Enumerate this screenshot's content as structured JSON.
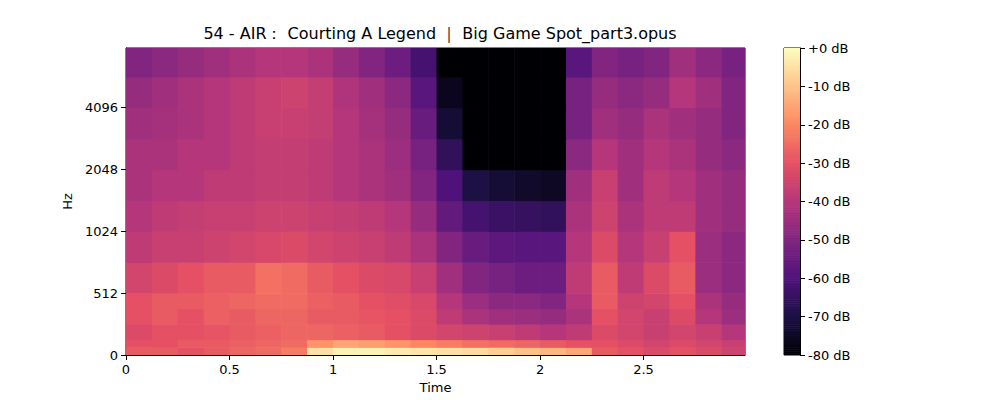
{
  "chart_data": {
    "type": "heatmap",
    "title": "54 - AIR： Courting A Legend ｜ Big Game Spot_part3.opus",
    "x_label": "Time",
    "y_label": "Hz",
    "xlim": [
      0,
      2.99
    ],
    "xticks": [
      0,
      0.5,
      1,
      1.5,
      2,
      2.5
    ],
    "ylim": [
      0,
      8000
    ],
    "yticks": [
      0,
      512,
      1024,
      2048,
      4096
    ],
    "grid": false,
    "time_bins": [
      0,
      0.125,
      0.25,
      0.375,
      0.5,
      0.625,
      0.75,
      0.875,
      1,
      1.125,
      1.25,
      1.375,
      1.5,
      1.625,
      1.75,
      1.875,
      2,
      2.125,
      2.25,
      2.375,
      2.5,
      2.625,
      2.75,
      2.875,
      3
    ],
    "freq_bins": [
      0,
      64,
      128,
      256,
      384,
      512,
      724,
      1024,
      1448,
      2048,
      2896,
      4096,
      5793,
      8000
    ],
    "cells": [
      [
        -28,
        -28,
        -30,
        -28,
        -26,
        -25,
        -22,
        -5,
        -2,
        -2,
        -3,
        -4,
        -5,
        -6,
        -8,
        -10,
        -12,
        -15,
        -28,
        -30,
        -32,
        -30,
        -32,
        -35
      ],
      [
        -30,
        -30,
        -28,
        -28,
        -27,
        -26,
        -25,
        -18,
        -15,
        -16,
        -18,
        -20,
        -22,
        -24,
        -25,
        -26,
        -28,
        -30,
        -30,
        -32,
        -34,
        -32,
        -34,
        -36
      ],
      [
        -32,
        -30,
        -30,
        -29,
        -28,
        -27,
        -26,
        -26,
        -27,
        -28,
        -30,
        -32,
        -34,
        -35,
        -36,
        -38,
        -40,
        -38,
        -32,
        -34,
        -36,
        -34,
        -36,
        -40
      ],
      [
        -30,
        -28,
        -30,
        -27,
        -28,
        -26,
        -26,
        -28,
        -28,
        -29,
        -30,
        -32,
        -38,
        -42,
        -44,
        -45,
        -46,
        -42,
        -30,
        -34,
        -36,
        -32,
        -40,
        -45
      ],
      [
        -30,
        -28,
        -28,
        -27,
        -26,
        -25,
        -25,
        -27,
        -28,
        -30,
        -31,
        -33,
        -40,
        -45,
        -48,
        -48,
        -50,
        -40,
        -28,
        -35,
        -34,
        -30,
        -42,
        -46
      ],
      [
        -34,
        -32,
        -30,
        -28,
        -28,
        -24,
        -25,
        -28,
        -30,
        -32,
        -33,
        -36,
        -44,
        -50,
        -52,
        -54,
        -54,
        -38,
        -28,
        -38,
        -32,
        -28,
        -45,
        -48
      ],
      [
        -38,
        -36,
        -36,
        -35,
        -34,
        -33,
        -32,
        -34,
        -35,
        -36,
        -38,
        -42,
        -50,
        -55,
        -57,
        -58,
        -58,
        -40,
        -32,
        -40,
        -36,
        -30,
        -45,
        -48
      ],
      [
        -40,
        -38,
        -37,
        -36,
        -36,
        -35,
        -35,
        -36,
        -37,
        -38,
        -40,
        -46,
        -56,
        -62,
        -64,
        -65,
        -66,
        -42,
        -35,
        -42,
        -38,
        -38,
        -44,
        -46
      ],
      [
        -42,
        -40,
        -40,
        -38,
        -38,
        -37,
        -37,
        -38,
        -40,
        -42,
        -44,
        -50,
        -60,
        -70,
        -72,
        -74,
        -75,
        -44,
        -36,
        -44,
        -38,
        -40,
        -44,
        -46
      ],
      [
        -42,
        -42,
        -40,
        -40,
        -38,
        -37,
        -37,
        -38,
        -40,
        -42,
        -45,
        -52,
        -66,
        -80,
        -80,
        -80,
        -80,
        -48,
        -40,
        -44,
        -40,
        -42,
        -46,
        -48
      ],
      [
        -44,
        -43,
        -42,
        -40,
        -38,
        -36,
        -36,
        -37,
        -40,
        -43,
        -46,
        -55,
        -72,
        -80,
        -80,
        -80,
        -80,
        -52,
        -44,
        -46,
        -42,
        -44,
        -46,
        -50
      ],
      [
        -46,
        -44,
        -42,
        -40,
        -38,
        -36,
        -35,
        -37,
        -41,
        -44,
        -48,
        -58,
        -76,
        -80,
        -80,
        -80,
        -80,
        -52,
        -46,
        -48,
        -46,
        -40,
        -44,
        -50
      ],
      [
        -50,
        -48,
        -46,
        -44,
        -42,
        -40,
        -40,
        -42,
        -46,
        -50,
        -54,
        -62,
        -80,
        -80,
        -80,
        -80,
        -80,
        -58,
        -50,
        -52,
        -50,
        -44,
        -48,
        -52
      ]
    ],
    "clim": [
      -80,
      0
    ],
    "cticks": [
      {
        "value": 0,
        "label": "+0 dB"
      },
      {
        "value": -10,
        "label": "-10 dB"
      },
      {
        "value": -20,
        "label": "-20 dB"
      },
      {
        "value": -30,
        "label": "-30 dB"
      },
      {
        "value": -40,
        "label": "-40 dB"
      },
      {
        "value": -50,
        "label": "-50 dB"
      },
      {
        "value": -60,
        "label": "-60 dB"
      },
      {
        "value": -70,
        "label": "-70 dB"
      },
      {
        "value": -80,
        "label": "-80 dB"
      }
    ]
  }
}
